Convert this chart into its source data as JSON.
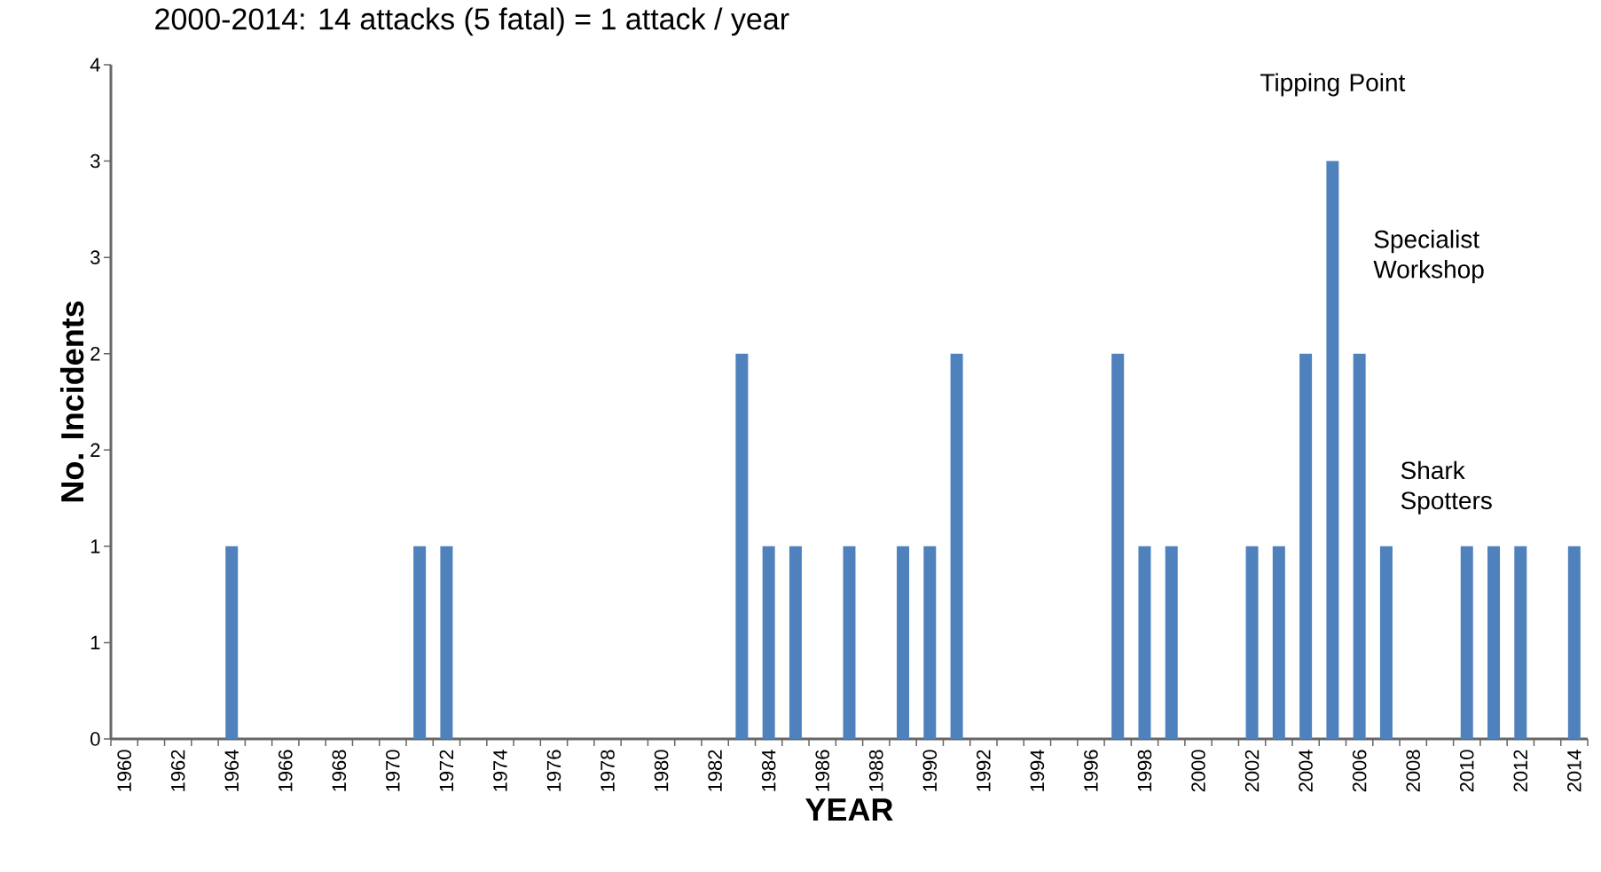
{
  "chart_data": {
    "type": "bar",
    "title": "2000-2014: 14 attacks (5 fatal) = 1 attack / year",
    "xlabel": "YEAR",
    "ylabel": "No. Incidents",
    "categories": [
      "1960",
      null,
      "1962",
      null,
      "1964",
      null,
      "1966",
      null,
      "1968",
      null,
      "1970",
      null,
      "1972",
      null,
      "1974",
      null,
      "1976",
      null,
      "1978",
      null,
      "1980",
      null,
      "1982",
      null,
      "1984",
      null,
      "1986",
      null,
      "1988",
      null,
      "1990",
      null,
      "1992",
      null,
      "1994",
      null,
      "1996",
      null,
      "1998",
      null,
      "2000",
      null,
      "2002",
      null,
      "2004",
      null,
      "2006",
      null,
      "2008",
      null,
      "2010",
      null,
      "2012",
      null,
      "2014"
    ],
    "values": [
      0,
      0,
      0,
      0,
      1,
      0,
      0,
      0,
      0,
      0,
      0,
      1,
      1,
      0,
      0,
      0,
      0,
      0,
      0,
      0,
      0,
      0,
      0,
      2,
      1,
      1,
      0,
      1,
      0,
      1,
      1,
      2,
      0,
      0,
      0,
      0,
      0,
      2,
      1,
      1,
      0,
      0,
      1,
      1,
      2,
      3,
      2,
      1,
      0,
      0,
      1,
      1,
      1,
      0,
      1
    ],
    "color": "#4f81bd",
    "ylim": [
      0,
      3.5
    ],
    "yticks": [
      0,
      {
        "value": 0.5,
        "label": "1"
      },
      1,
      {
        "value": 1.5,
        "label": "2"
      },
      2,
      {
        "value": 2.5,
        "label": "3"
      },
      3,
      {
        "value": 3.5,
        "label": "4"
      }
    ],
    "annotations": [
      "Tipping Point",
      "Specialist Workshop",
      "Shark Spotters"
    ],
    "grid": false
  }
}
